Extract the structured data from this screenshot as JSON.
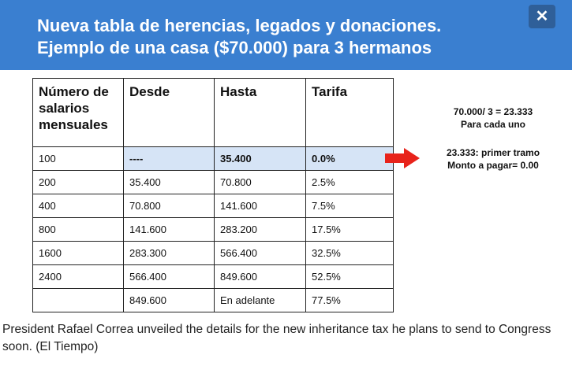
{
  "header": {
    "title_line1": "Nueva tabla de herencias, legados y donaciones.",
    "title_line2": "Ejemplo de una casa ($70.000) para 3 hermanos",
    "close_label": "✕",
    "color": "#3a7fd0"
  },
  "table": {
    "headers": [
      "Número de salarios mensuales",
      "Desde",
      "Hasta",
      "Tarifa"
    ],
    "rows": [
      [
        "100",
        "----",
        "35.400",
        "0.0%"
      ],
      [
        "200",
        "35.400",
        "70.800",
        "2.5%"
      ],
      [
        "400",
        "70.800",
        "141.600",
        "7.5%"
      ],
      [
        "800",
        "141.600",
        "283.200",
        "17.5%"
      ],
      [
        "1600",
        "283.300",
        "566.400",
        "32.5%"
      ],
      [
        "2400",
        "566.400",
        "849.600",
        "52.5%"
      ],
      [
        "",
        "849.600",
        "En adelante",
        "77.5%"
      ]
    ]
  },
  "notes": {
    "calc_line1": "70.000/ 3 = 23.333",
    "calc_line2": "Para cada uno",
    "result_line1": "23.333: primer tramo",
    "result_line2": "Monto a pagar= 0.00",
    "arrow_icon": "right-arrow-icon",
    "arrow_color": "#e8231b"
  },
  "caption": "President Rafael Correa unveiled the details for the new inheritance tax he plans to send to Congress soon. (El Tiempo)"
}
